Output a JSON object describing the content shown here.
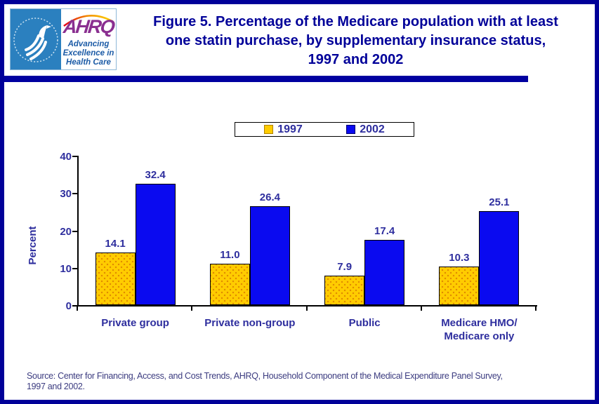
{
  "header": {
    "title_lines": [
      "Figure 5. Percentage of the Medicare population with at least",
      "one statin purchase, by supplementary insurance status,",
      "1997 and 2002"
    ],
    "logo": {
      "ahrq": "AHRQ",
      "tagline": [
        "Advancing",
        "Excellence in",
        "Health Care"
      ]
    }
  },
  "legend": {
    "items": [
      {
        "label": "1997",
        "color": "#ffcc00",
        "pattern": "dots",
        "border": "#b08000"
      },
      {
        "label": "2002",
        "color": "#0a0af0",
        "pattern": "solid",
        "border": "#000070"
      }
    ]
  },
  "chart_data": {
    "type": "bar",
    "title": "Figure 5. Percentage of the Medicare population with at least one statin purchase, by supplementary insurance status, 1997 and 2002",
    "categories": [
      "Private group",
      "Private non-group",
      "Public",
      "Medicare HMO/\nMedicare only"
    ],
    "series": [
      {
        "name": "1997",
        "color": "#ffcc00",
        "pattern": "dots",
        "values": [
          14.1,
          11.0,
          7.9,
          10.3
        ]
      },
      {
        "name": "2002",
        "color": "#0a0af0",
        "pattern": "solid",
        "values": [
          32.4,
          26.4,
          17.4,
          25.1
        ]
      }
    ],
    "xlabel": "",
    "ylabel": "Percent",
    "ylim": [
      0,
      40
    ],
    "yticks": [
      0,
      10,
      20,
      30,
      40
    ],
    "grid": false,
    "legend_position": "top-center",
    "value_labels": true
  },
  "source_lines": [
    "Source: Center for Financing, Access, and Cost Trends, AHRQ, Household Component of the Medical Expenditure Panel Survey,",
    "1997 and 2002."
  ]
}
